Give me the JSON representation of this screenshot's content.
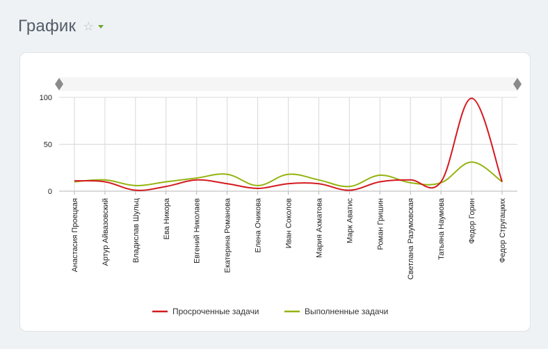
{
  "page": {
    "title": "График"
  },
  "colors": {
    "overdue": "#d4191f",
    "done": "#94b30e",
    "grid": "#d8d8d8",
    "axis": "#b5b5b5"
  },
  "chart_data": {
    "type": "line",
    "title": "",
    "xlabel": "",
    "ylabel": "",
    "ylim": [
      0,
      100
    ],
    "yticks": [
      0,
      50,
      100
    ],
    "categories": [
      "Анастасия Проецкая",
      "Артур Айвазовский",
      "Владислав Шульц",
      "Ева Никора",
      "Евгений Николаев",
      "Екатерина Романова",
      "Елена Очикова",
      "Иван Соколов",
      "Мария Ахматова",
      "Марк Аватис",
      "Роман Гришин",
      "Светлана Разумовская",
      "Татьяна Наумова",
      "Федор Горин",
      "Федор Стругацких"
    ],
    "series": [
      {
        "name": "Просроченные задачи",
        "color": "#d4191f",
        "values": [
          11,
          10,
          1,
          5,
          12,
          8,
          3,
          8,
          8,
          1,
          10,
          12,
          10,
          99,
          10
        ]
      },
      {
        "name": "Выполненные задачи",
        "color": "#94b30e",
        "values": [
          10,
          12,
          6,
          10,
          14,
          18,
          6,
          18,
          12,
          5,
          17,
          9,
          9,
          31,
          10
        ]
      }
    ],
    "legend_position": "bottom"
  }
}
